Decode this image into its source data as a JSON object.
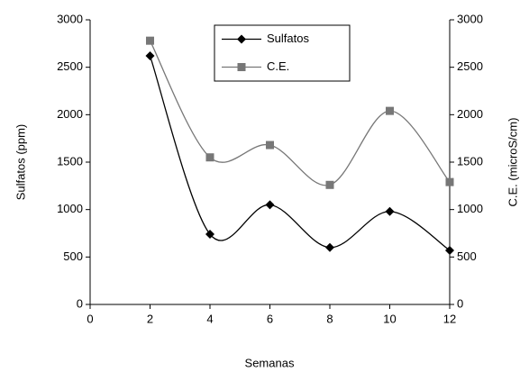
{
  "chart_data": {
    "type": "line",
    "x_label": "Semanas",
    "y_label": "Sulfatos (ppm)",
    "y2_label": "C.E. (microS/cm)",
    "x": [
      2,
      4,
      6,
      8,
      10,
      12
    ],
    "series": [
      {
        "name": "Sulfatos",
        "color": "#000000",
        "marker": "diamond",
        "values": [
          2620,
          740,
          1050,
          600,
          980,
          570
        ]
      },
      {
        "name": "C.E.",
        "color": "#777777",
        "marker": "square",
        "axis": "y2",
        "values": [
          2780,
          1550,
          1680,
          1260,
          2040,
          1290
        ]
      }
    ],
    "xlim": [
      0,
      12
    ],
    "xticks": [
      0,
      2,
      4,
      6,
      8,
      10,
      12
    ],
    "ylim": [
      0,
      3000
    ],
    "yticks": [
      0,
      500,
      1000,
      1500,
      2000,
      2500,
      3000
    ],
    "y2lim": [
      0,
      3000
    ],
    "y2ticks": [
      0,
      500,
      1000,
      1500,
      2000,
      2500,
      3000
    ],
    "legend": "top-center",
    "smooth": true
  }
}
